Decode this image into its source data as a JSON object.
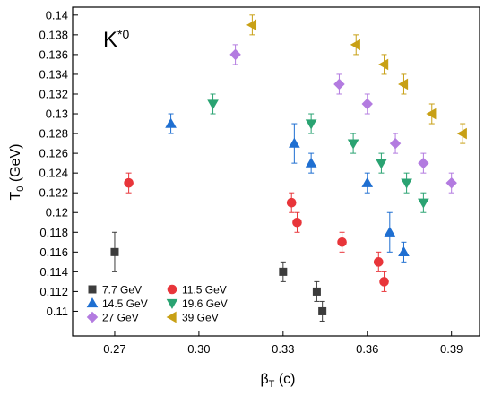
{
  "chart_data": {
    "type": "scatter",
    "annotation": {
      "text": "K",
      "superscript": "*0"
    },
    "xlabel": {
      "main": "β",
      "subscript": "T",
      "suffix": " (c)"
    },
    "ylabel": {
      "main": "T",
      "subscript": "0",
      "suffix": " (GeV)"
    },
    "xlim": [
      0.255,
      0.4
    ],
    "ylim": [
      0.1075,
      0.1408
    ],
    "xticks": [
      "0.27",
      "0.30",
      "0.33",
      "0.36",
      "0.39"
    ],
    "yticks": [
      "0.11",
      "0.112",
      "0.114",
      "0.116",
      "0.118",
      "0.12",
      "0.122",
      "0.124",
      "0.126",
      "0.128",
      "0.13",
      "0.132",
      "0.134",
      "0.136",
      "0.138",
      "0.14"
    ],
    "grid": false,
    "legend_position": "bottom-left",
    "series": [
      {
        "name": "7.7 GeV",
        "marker": "square",
        "color": "#3c3c3c",
        "x": [
          0.27,
          0.33,
          0.342,
          0.344
        ],
        "y": [
          0.116,
          0.114,
          0.112,
          0.11
        ],
        "err": [
          0.002,
          0.001,
          0.001,
          0.001
        ]
      },
      {
        "name": "11.5 GeV",
        "marker": "circle",
        "color": "#e8353a",
        "x": [
          0.275,
          0.333,
          0.335,
          0.351,
          0.364,
          0.366
        ],
        "y": [
          0.123,
          0.121,
          0.119,
          0.117,
          0.115,
          0.113
        ],
        "err": [
          0.001,
          0.001,
          0.001,
          0.001,
          0.001,
          0.001
        ]
      },
      {
        "name": "14.5 GeV",
        "marker": "triangle-up",
        "color": "#1f6fd1",
        "x": [
          0.29,
          0.334,
          0.34,
          0.36,
          0.368,
          0.373
        ],
        "y": [
          0.129,
          0.127,
          0.125,
          0.123,
          0.118,
          0.116
        ],
        "err": [
          0.001,
          0.002,
          0.001,
          0.001,
          0.002,
          0.001
        ]
      },
      {
        "name": "19.6 GeV",
        "marker": "triangle-down",
        "color": "#2aa372",
        "x": [
          0.305,
          0.34,
          0.355,
          0.365,
          0.374,
          0.38
        ],
        "y": [
          0.131,
          0.129,
          0.127,
          0.125,
          0.123,
          0.121
        ],
        "err": [
          0.001,
          0.001,
          0.001,
          0.001,
          0.001,
          0.001
        ]
      },
      {
        "name": "27 GeV",
        "marker": "diamond",
        "color": "#b37be0",
        "x": [
          0.313,
          0.35,
          0.36,
          0.37,
          0.38,
          0.39
        ],
        "y": [
          0.136,
          0.133,
          0.131,
          0.127,
          0.125,
          0.123
        ],
        "err": [
          0.001,
          0.001,
          0.001,
          0.001,
          0.001,
          0.001
        ]
      },
      {
        "name": "39 GeV",
        "marker": "triangle-left",
        "color": "#c8a015",
        "x": [
          0.319,
          0.356,
          0.366,
          0.373,
          0.383,
          0.394
        ],
        "y": [
          0.139,
          0.137,
          0.135,
          0.133,
          0.13,
          0.128
        ],
        "err": [
          0.001,
          0.001,
          0.001,
          0.001,
          0.001,
          0.001
        ]
      }
    ]
  }
}
